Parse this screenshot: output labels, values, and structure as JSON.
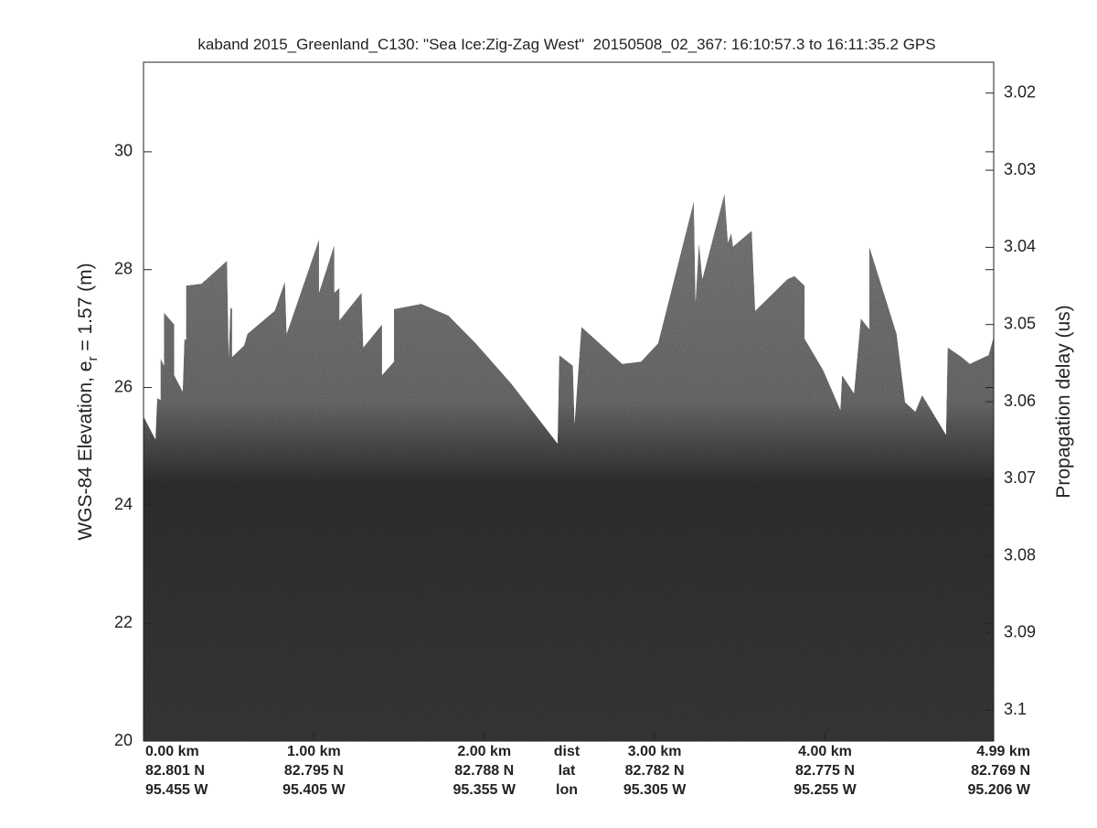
{
  "chart_data": {
    "type": "echogram",
    "title": "kaband 2015_Greenland_C130: \"Sea Ice:Zig-Zag West\"  20150508_02_367: 16:10:57.3 to 16:11:35.2 GPS",
    "ylabel": {
      "prefix": "WGS-84 Elevation, e",
      "sub": "r",
      "suffix": " = 1.57 (m)"
    },
    "y2label": "Propagation delay (us)",
    "xlim": [
      0,
      4.99
    ],
    "ylim": [
      20,
      31.52
    ],
    "yticks": [
      20,
      22,
      24,
      26,
      28,
      30
    ],
    "y2lim": [
      3.104,
      3.016
    ],
    "y2ticks": [
      3.02,
      3.03,
      3.04,
      3.05,
      3.06,
      3.07,
      3.08,
      3.09,
      3.1
    ],
    "xticks": [
      {
        "value": 0,
        "label": "0.00 km"
      },
      {
        "value": 1,
        "label": "1.00 km"
      },
      {
        "value": 2,
        "label": "2.00 km"
      },
      {
        "value": 3,
        "label": "3.00 km"
      },
      {
        "value": 4,
        "label": "4.00 km"
      },
      {
        "value": 4.99,
        "label": "4.99 km"
      }
    ],
    "lat_labels": [
      "82.801 N",
      "82.795 N",
      "82.788 N",
      "82.782 N",
      "82.775 N",
      "82.769 N"
    ],
    "lon_labels": [
      "95.455 W",
      "95.405 W",
      "95.355 W",
      "95.305 W",
      "95.255 W",
      "95.206 W"
    ],
    "row_labels": [
      "dist",
      "lat",
      "lon"
    ],
    "surface": {
      "x": [
        0.0,
        0.07,
        0.08,
        0.1,
        0.1,
        0.12,
        0.12,
        0.18,
        0.18,
        0.23,
        0.24,
        0.25,
        0.25,
        0.34,
        0.49,
        0.5,
        0.51,
        0.52,
        0.52,
        0.59,
        0.61,
        0.77,
        0.83,
        0.84,
        1.03,
        1.03,
        1.12,
        1.12,
        1.15,
        1.15,
        1.28,
        1.29,
        1.4,
        1.4,
        1.47,
        1.47,
        1.63,
        1.79,
        1.95,
        2.16,
        2.43,
        2.44,
        2.52,
        2.53,
        2.57,
        2.81,
        2.92,
        3.02,
        3.23,
        3.24,
        3.26,
        3.28,
        3.41,
        3.43,
        3.45,
        3.46,
        3.52,
        3.57,
        3.59,
        3.78,
        3.82,
        3.88,
        3.88,
        3.99,
        4.09,
        4.1,
        4.17,
        4.21,
        4.26,
        4.26,
        4.42,
        4.47,
        4.53,
        4.57,
        4.71,
        4.72,
        4.8,
        4.85,
        4.96,
        4.99
      ],
      "values": [
        25.51,
        25.12,
        25.82,
        25.79,
        26.49,
        26.37,
        27.27,
        27.07,
        26.21,
        25.93,
        26.83,
        26.8,
        27.73,
        27.76,
        28.15,
        26.52,
        27.36,
        27.33,
        26.52,
        26.71,
        26.91,
        27.3,
        27.8,
        26.91,
        28.51,
        27.61,
        28.42,
        27.61,
        27.69,
        27.14,
        27.61,
        26.68,
        27.07,
        26.21,
        26.44,
        27.33,
        27.42,
        27.22,
        26.75,
        26.06,
        25.05,
        26.55,
        26.37,
        25.39,
        27.03,
        26.4,
        26.44,
        26.75,
        29.16,
        27.45,
        28.46,
        27.84,
        29.29,
        28.46,
        28.62,
        28.39,
        28.54,
        28.66,
        27.3,
        27.84,
        27.89,
        27.73,
        26.83,
        26.29,
        25.62,
        26.21,
        25.9,
        27.17,
        26.99,
        28.39,
        26.91,
        25.75,
        25.59,
        25.87,
        25.2,
        26.68,
        26.52,
        26.4,
        26.55,
        26.86
      ]
    }
  }
}
